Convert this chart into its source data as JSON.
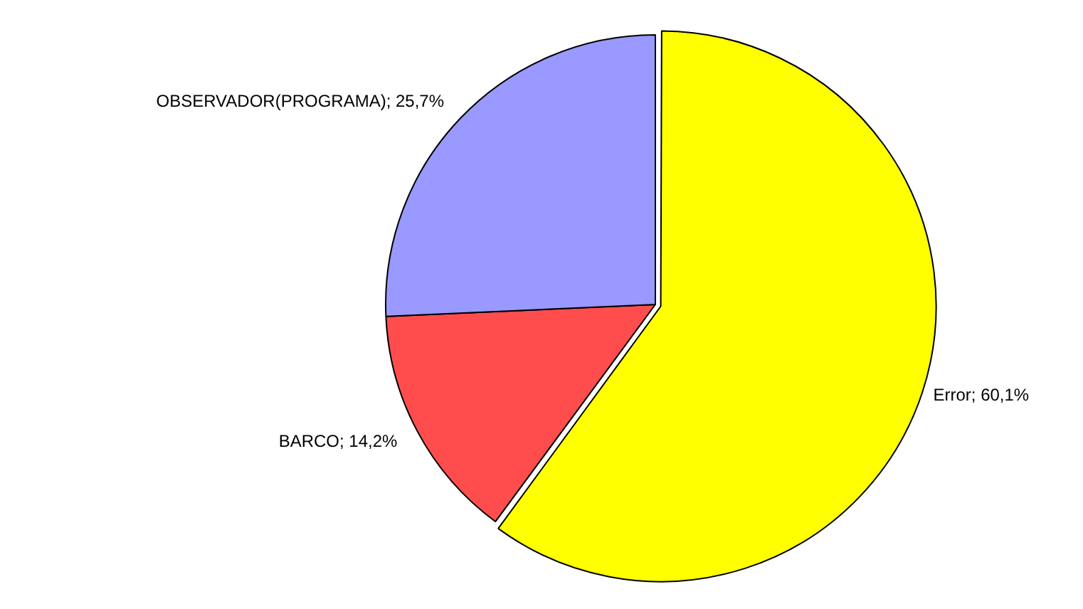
{
  "chart_data": {
    "type": "pie",
    "categories": [
      "Error",
      "BARCO",
      "OBSERVADOR(PROGRAMA)"
    ],
    "values": [
      60.1,
      14.2,
      25.7
    ],
    "value_labels": [
      "60,1%",
      "14,2%",
      "25,7%"
    ],
    "colors": [
      "#ffff00",
      "#ff4d4d",
      "#9999ff"
    ],
    "legend": false
  }
}
